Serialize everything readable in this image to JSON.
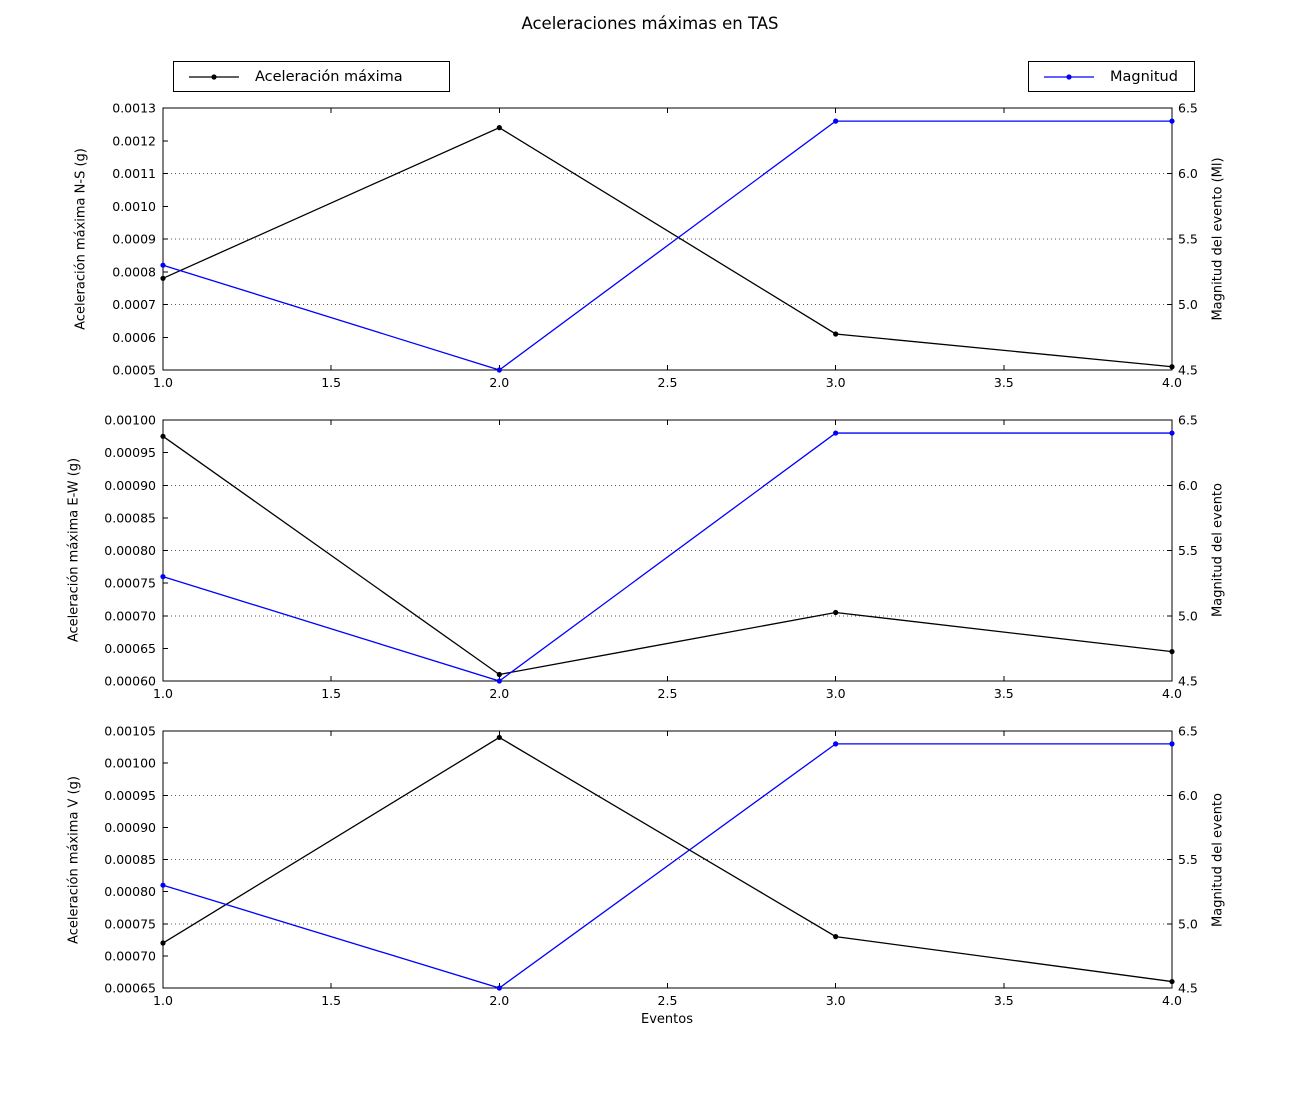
{
  "title": "Aceleraciones máximas en TAS",
  "xlabel": "Eventos",
  "legend": [
    {
      "label": "Aceleración máxima",
      "color": "#000000",
      "marker": "dot-on-line"
    },
    {
      "label": "Magnitud",
      "color": "#0000ff",
      "marker": "dot-on-line"
    }
  ],
  "colors": {
    "acceleration_line": "#000000",
    "magnitude_line": "#0000ff",
    "grid": "#555555",
    "frame": "#000000",
    "background": "#ffffff"
  },
  "chart_data": [
    {
      "type": "line",
      "x": [
        1,
        2,
        3,
        4
      ],
      "xlim": [
        1.0,
        4.0
      ],
      "xticks": [
        "1.0",
        "1.5",
        "2.0",
        "2.5",
        "3.0",
        "3.5",
        "4.0"
      ],
      "ylabel_left": "Aceleración máxima N-S (g)",
      "yleft_lim": [
        0.0005,
        0.0013
      ],
      "yleft_ticks": [
        "0.0005",
        "0.0006",
        "0.0007",
        "0.0008",
        "0.0009",
        "0.0010",
        "0.0011",
        "0.0012",
        "0.0013"
      ],
      "ylabel_right": "Magnitud del evento (Ml)",
      "yright_lim": [
        4.5,
        6.5
      ],
      "yright_ticks": [
        "4.5",
        "5.0",
        "5.5",
        "6.0",
        "6.5"
      ],
      "grid_right_values": [
        5.0,
        5.5,
        6.0
      ],
      "grid_style": "dotted",
      "series": [
        {
          "name": "Aceleración máxima",
          "axis": "left",
          "color": "#000000",
          "values": [
            0.00078,
            0.00124,
            0.00061,
            0.00051
          ]
        },
        {
          "name": "Magnitud",
          "axis": "right",
          "color": "#0000ff",
          "values": [
            5.3,
            4.5,
            6.4,
            6.4
          ]
        }
      ]
    },
    {
      "type": "line",
      "x": [
        1,
        2,
        3,
        4
      ],
      "xlim": [
        1.0,
        4.0
      ],
      "xticks": [
        "1.0",
        "1.5",
        "2.0",
        "2.5",
        "3.0",
        "3.5",
        "4.0"
      ],
      "ylabel_left": "Aceleración máxima E-W (g)",
      "yleft_lim": [
        0.0006,
        0.001
      ],
      "yleft_ticks": [
        "0.00060",
        "0.00065",
        "0.00070",
        "0.00075",
        "0.00080",
        "0.00085",
        "0.00090",
        "0.00095",
        "0.00100"
      ],
      "ylabel_right": "Magnitud del evento",
      "yright_lim": [
        4.5,
        6.5
      ],
      "yright_ticks": [
        "4.5",
        "5.0",
        "5.5",
        "6.0",
        "6.5"
      ],
      "grid_right_values": [
        5.0,
        5.5,
        6.0
      ],
      "grid_style": "dotted",
      "series": [
        {
          "name": "Aceleración máxima",
          "axis": "left",
          "color": "#000000",
          "values": [
            0.000975,
            0.00061,
            0.000705,
            0.000645
          ]
        },
        {
          "name": "Magnitud",
          "axis": "right",
          "color": "#0000ff",
          "values": [
            5.3,
            4.5,
            6.4,
            6.4
          ]
        }
      ]
    },
    {
      "type": "line",
      "x": [
        1,
        2,
        3,
        4
      ],
      "xlim": [
        1.0,
        4.0
      ],
      "xticks": [
        "1.0",
        "1.5",
        "2.0",
        "2.5",
        "3.0",
        "3.5",
        "4.0"
      ],
      "ylabel_left": "Aceleración máxima V (g)",
      "yleft_lim": [
        0.00065,
        0.00105
      ],
      "yleft_ticks": [
        "0.00065",
        "0.00070",
        "0.00075",
        "0.00080",
        "0.00085",
        "0.00090",
        "0.00095",
        "0.00100",
        "0.00105"
      ],
      "ylabel_right": "Magnitud del evento",
      "yright_lim": [
        4.5,
        6.5
      ],
      "yright_ticks": [
        "4.5",
        "5.0",
        "5.5",
        "6.0",
        "6.5"
      ],
      "grid_right_values": [
        5.0,
        5.5,
        6.0
      ],
      "grid_style": "dotted",
      "series": [
        {
          "name": "Aceleración máxima",
          "axis": "left",
          "color": "#000000",
          "values": [
            0.00072,
            0.00104,
            0.00073,
            0.00066
          ]
        },
        {
          "name": "Magnitud",
          "axis": "right",
          "color": "#0000ff",
          "values": [
            5.3,
            4.5,
            6.4,
            6.4
          ]
        }
      ]
    }
  ]
}
